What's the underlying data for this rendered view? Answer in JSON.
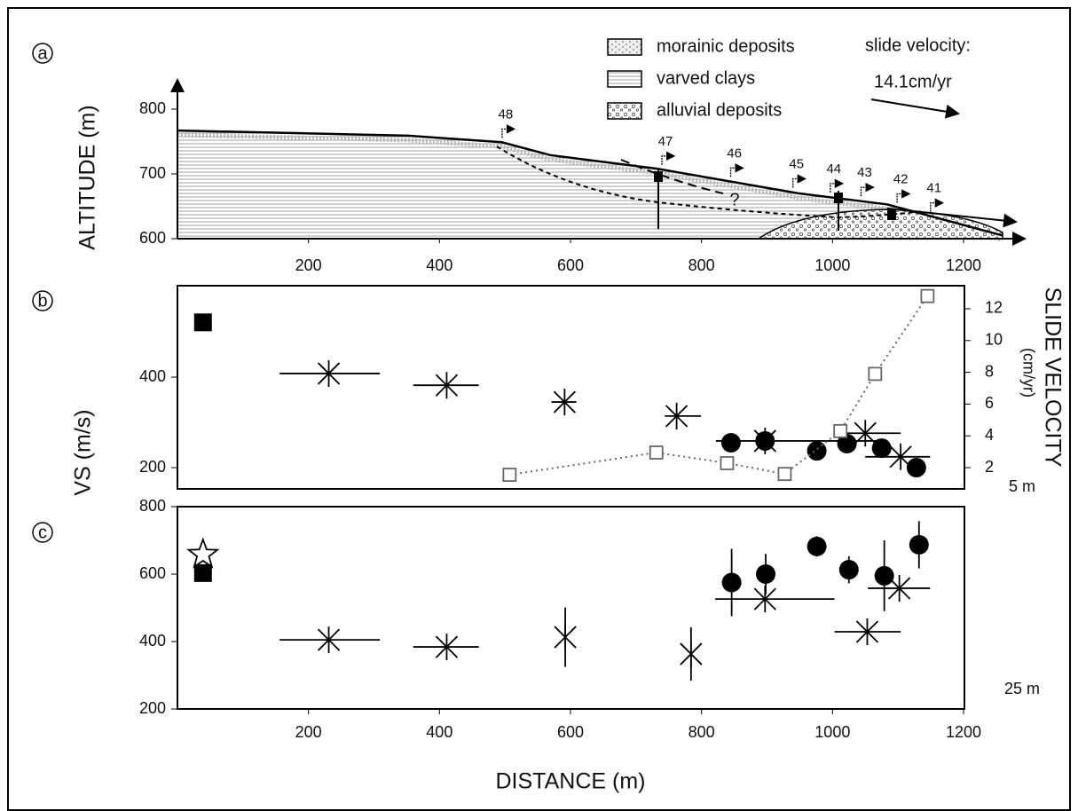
{
  "chart_data": [
    {
      "type": "section",
      "label": "a",
      "ylabel": "ALTITUDE (m)",
      "xlim": [
        0,
        1200
      ],
      "xticks": [
        200,
        400,
        600,
        800,
        1000,
        1200
      ],
      "ylim": [
        600,
        800
      ],
      "yticks": [
        600,
        700,
        800
      ],
      "surface": {
        "x": [
          0,
          352,
          495,
          569,
          732,
          948,
          1083,
          1259
        ],
        "y": [
          767,
          759,
          749,
          729,
          708,
          670,
          653,
          605
        ]
      },
      "legend": [
        "morainic deposits",
        "varved clays",
        "alluvial deposits"
      ],
      "velocity_title": "slide velocity:",
      "velocity_scale": "14.1cm/yr",
      "stations": {
        "labels": [
          "48",
          "47",
          "46",
          "45",
          "44",
          "43",
          "42",
          "41"
        ],
        "x": [
          501,
          745,
          850,
          945,
          1002,
          1049,
          1104,
          1155
        ]
      },
      "annotation": "?"
    },
    {
      "type": "scatter",
      "label": "b",
      "ylabel": "VS (m/s)",
      "y2label": [
        "SLIDE VELOCITY",
        "(cm/yr)"
      ],
      "depth": "5 m",
      "xlim": [
        0,
        1200
      ],
      "ylim": [
        153,
        602
      ],
      "yticks": [
        200,
        400
      ],
      "y2lim": [
        0.66,
        13.45
      ],
      "y2ticks": [
        2,
        4,
        6,
        8,
        10,
        12
      ],
      "series": [
        {
          "marker": "asterisk",
          "color": "#000",
          "x": [
            231,
            411,
            591,
            762,
            897,
            1050,
            1104
          ],
          "values": [
            408,
            382,
            345,
            314,
            259,
            276,
            224
          ],
          "x_ranges": [
            [
              156,
              309
            ],
            [
              360,
              460
            ],
            [
              571,
              609
            ],
            [
              744,
              799
            ],
            [
              822,
              1083
            ],
            [
              1003,
              1104
            ],
            [
              1050,
              1149
            ]
          ]
        },
        {
          "marker": "circle",
          "color": "#000",
          "x": [
            845,
            897,
            976,
            1022,
            1075,
            1128
          ],
          "values": [
            255,
            259,
            237,
            253,
            243,
            200
          ]
        },
        {
          "marker": "open-square",
          "color": "#666",
          "axis": "y2",
          "line": "dotted",
          "x": [
            507,
            731,
            839,
            927,
            1012,
            1065,
            1145
          ],
          "values": [
            1.55,
            2.95,
            2.28,
            1.6,
            4.3,
            7.9,
            12.8
          ]
        },
        {
          "marker": "square",
          "color": "#000",
          "x": [
            39
          ],
          "values": [
            521
          ]
        }
      ]
    },
    {
      "type": "scatter",
      "label": "c",
      "xlabel": "DISTANCE (m)",
      "depth": "25 m",
      "xlim": [
        0,
        1200
      ],
      "xticks": [
        200,
        400,
        600,
        800,
        1000,
        1200
      ],
      "ylim": [
        200,
        800
      ],
      "yticks": [
        200,
        400,
        600,
        800
      ],
      "series": [
        {
          "marker": "asterisk",
          "color": "#000",
          "x": [
            231,
            411,
            592,
            784,
            897,
            1053,
            1102
          ],
          "values": [
            405,
            384,
            413,
            363,
            526,
            429,
            558
          ],
          "x_ranges": [
            [
              156,
              309
            ],
            [
              360,
              460
            ],
            null,
            null,
            [
              821,
              1003
            ],
            [
              1003,
              1104
            ],
            [
              1054,
              1149
            ]
          ],
          "yerr": [
            null,
            null,
            88,
            79,
            null,
            null,
            null
          ]
        },
        {
          "marker": "circle",
          "color": "#000",
          "x": [
            846,
            898,
            976,
            1025,
            1079,
            1132
          ],
          "values": [
            575,
            600,
            682,
            613,
            595,
            687
          ],
          "yerr": [
            100,
            60,
            30,
            40,
            105,
            70
          ]
        },
        {
          "marker": "star",
          "color": "#000",
          "x": [
            39
          ],
          "values": [
            658
          ]
        },
        {
          "marker": "square",
          "color": "#000",
          "x": [
            39
          ],
          "values": [
            603
          ]
        }
      ]
    }
  ]
}
